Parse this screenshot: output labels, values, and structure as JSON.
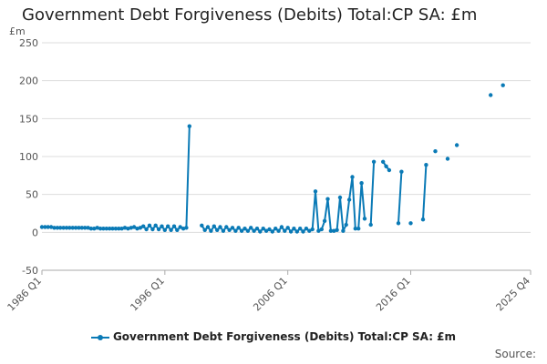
{
  "title": "Government Debt Forgiveness (Debits) Total:CP SA: £m",
  "source_label": "Source:",
  "chart_data": {
    "type": "line",
    "title": "Government Debt Forgiveness (Debits) Total:CP SA: £m",
    "ylabel": "£m",
    "xlabel": "",
    "ylim": [
      -50,
      250
    ],
    "yticks": [
      -50,
      0,
      50,
      100,
      150,
      200,
      250
    ],
    "xticks": [
      "1986 Q1",
      "1996 Q1",
      "2006 Q1",
      "2016 Q1",
      "2025 Q4"
    ],
    "xlim": [
      "1986 Q1",
      "2025 Q4"
    ],
    "grid": "horizontal",
    "legend": "bottom",
    "color": "#0a7ab6",
    "series": [
      {
        "name": "Government Debt Forgiveness (Debits) Total:CP SA: £m",
        "points": [
          [
            "1986 Q1",
            7
          ],
          [
            "1986 Q2",
            7
          ],
          [
            "1986 Q3",
            7
          ],
          [
            "1986 Q4",
            7
          ],
          [
            "1987 Q1",
            6
          ],
          [
            "1987 Q2",
            6
          ],
          [
            "1987 Q3",
            6
          ],
          [
            "1987 Q4",
            6
          ],
          [
            "1988 Q1",
            6
          ],
          [
            "1988 Q2",
            6
          ],
          [
            "1988 Q3",
            6
          ],
          [
            "1988 Q4",
            6
          ],
          [
            "1989 Q1",
            6
          ],
          [
            "1989 Q2",
            6
          ],
          [
            "1989 Q3",
            6
          ],
          [
            "1989 Q4",
            6
          ],
          [
            "1990 Q1",
            5
          ],
          [
            "1990 Q2",
            5
          ],
          [
            "1990 Q3",
            6
          ],
          [
            "1990 Q4",
            5
          ],
          [
            "1991 Q1",
            5
          ],
          [
            "1991 Q2",
            5
          ],
          [
            "1991 Q3",
            5
          ],
          [
            "1991 Q4",
            5
          ],
          [
            "1992 Q1",
            5
          ],
          [
            "1992 Q2",
            5
          ],
          [
            "1992 Q3",
            5
          ],
          [
            "1992 Q4",
            6
          ],
          [
            "1993 Q1",
            5
          ],
          [
            "1993 Q2",
            6
          ],
          [
            "1993 Q3",
            7
          ],
          [
            "1993 Q4",
            5
          ],
          [
            "1994 Q1",
            6
          ],
          [
            "1994 Q2",
            8
          ],
          [
            "1994 Q3",
            4
          ],
          [
            "1994 Q4",
            9
          ],
          [
            "1995 Q1",
            4
          ],
          [
            "1995 Q2",
            9
          ],
          [
            "1995 Q3",
            4
          ],
          [
            "1995 Q4",
            8
          ],
          [
            "1996 Q1",
            3
          ],
          [
            "1996 Q2",
            8
          ],
          [
            "1996 Q3",
            3
          ],
          [
            "1996 Q4",
            8
          ],
          [
            "1997 Q1",
            3
          ],
          [
            "1997 Q2",
            7
          ],
          [
            "1997 Q3",
            5
          ],
          [
            "1997 Q4",
            6
          ],
          [
            "1998 Q1",
            140
          ],
          [
            "1998 Q4",
            null
          ],
          [
            "1999 Q1",
            9
          ],
          [
            "1999 Q2",
            3
          ],
          [
            "1999 Q3",
            7
          ],
          [
            "1999 Q4",
            2
          ],
          [
            "2000 Q1",
            8
          ],
          [
            "2000 Q2",
            3
          ],
          [
            "2000 Q3",
            7
          ],
          [
            "2000 Q4",
            2
          ],
          [
            "2001 Q1",
            7
          ],
          [
            "2001 Q2",
            3
          ],
          [
            "2001 Q3",
            6
          ],
          [
            "2001 Q4",
            2
          ],
          [
            "2002 Q1",
            6
          ],
          [
            "2002 Q2",
            2
          ],
          [
            "2002 Q3",
            5
          ],
          [
            "2002 Q4",
            2
          ],
          [
            "2003 Q1",
            6
          ],
          [
            "2003 Q2",
            2
          ],
          [
            "2003 Q3",
            5
          ],
          [
            "2003 Q4",
            1
          ],
          [
            "2004 Q1",
            5
          ],
          [
            "2004 Q2",
            2
          ],
          [
            "2004 Q3",
            4
          ],
          [
            "2004 Q4",
            1
          ],
          [
            "2005 Q1",
            5
          ],
          [
            "2005 Q2",
            2
          ],
          [
            "2005 Q3",
            7
          ],
          [
            "2005 Q4",
            2
          ],
          [
            "2006 Q1",
            6
          ],
          [
            "2006 Q2",
            1
          ],
          [
            "2006 Q3",
            5
          ],
          [
            "2006 Q4",
            1
          ],
          [
            "2007 Q1",
            5
          ],
          [
            "2007 Q2",
            1
          ],
          [
            "2007 Q3",
            5
          ],
          [
            "2007 Q4",
            2
          ],
          [
            "2008 Q1",
            4
          ],
          [
            "2008 Q2",
            54
          ],
          [
            "2008 Q3",
            2
          ],
          [
            "2008 Q4",
            4
          ],
          [
            "2009 Q1",
            15
          ],
          [
            "2009 Q2",
            44
          ],
          [
            "2009 Q3",
            2
          ],
          [
            "2009 Q4",
            2
          ],
          [
            "2010 Q1",
            3
          ],
          [
            "2010 Q2",
            46
          ],
          [
            "2010 Q3",
            2
          ],
          [
            "2010 Q4",
            10
          ],
          [
            "2011 Q1",
            43
          ],
          [
            "2011 Q2",
            73
          ],
          [
            "2011 Q3",
            5
          ],
          [
            "2011 Q4",
            5
          ],
          [
            "2012 Q1",
            65
          ],
          [
            "2012 Q2",
            18
          ],
          [
            "2012 Q3",
            null
          ],
          [
            "2012 Q4",
            10
          ],
          [
            "2013 Q1",
            93
          ],
          [
            "2013 Q2",
            null
          ],
          [
            "2013 Q4",
            93
          ],
          [
            "2014 Q1",
            87
          ],
          [
            "2014 Q2",
            82
          ],
          [
            "2014 Q3",
            null
          ],
          [
            "2015 Q1",
            12
          ],
          [
            "2015 Q2",
            80
          ],
          [
            "2015 Q3",
            null
          ],
          [
            "2016 Q1",
            12
          ],
          [
            "2016 Q2",
            null
          ],
          [
            "2017 Q1",
            17
          ],
          [
            "2017 Q2",
            89
          ],
          [
            "2017 Q3",
            null
          ],
          [
            "2018 Q1",
            107
          ],
          [
            "2018 Q2",
            null
          ],
          [
            "2019 Q1",
            97
          ],
          [
            "2019 Q2",
            null
          ],
          [
            "2019 Q4",
            115
          ],
          [
            "2020 Q1",
            null
          ],
          [
            "2022 Q3",
            181
          ],
          [
            "2022 Q4",
            null
          ],
          [
            "2023 Q3",
            194
          ]
        ]
      }
    ]
  }
}
